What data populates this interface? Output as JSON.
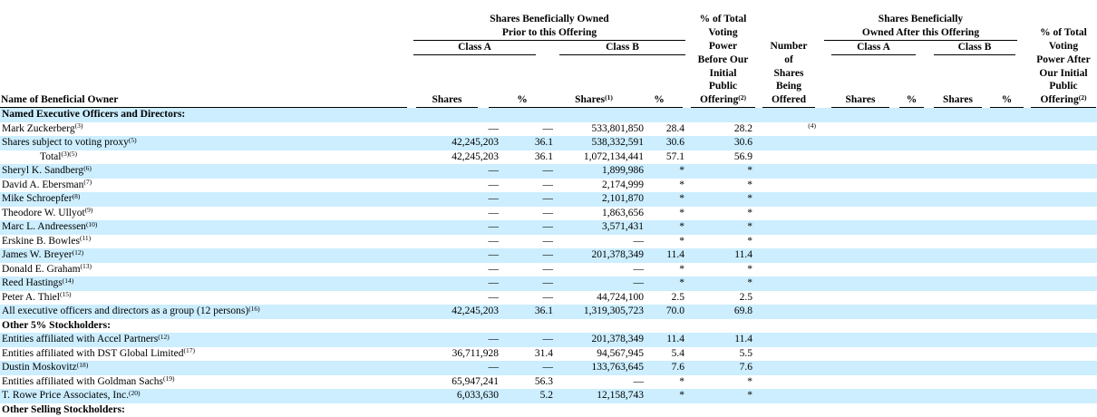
{
  "colors": {
    "stripe": "#cceeff",
    "text": "#000000",
    "background": "#ffffff",
    "rule": "#000000"
  },
  "table": {
    "name_col_header": "Name of Beneficial Owner",
    "groups": {
      "prior": {
        "title": "Shares Beneficially Owned\nPrior to this Offering",
        "class_a": "Class A",
        "class_b": "Class B"
      },
      "after": {
        "title": "Shares Beneficially\nOwned After this Offering",
        "class_a": "Class A",
        "class_b": "Class B"
      }
    },
    "voting_before": {
      "text": "% of Total\nVoting\nPower\nBefore Our\nInitial\nPublic\nOffering",
      "fn": "(2)"
    },
    "offered_header": {
      "text": "Number\nof\nShares\nBeing\nOffered"
    },
    "voting_after": {
      "text": "% of Total\nVoting\nPower After\nOur Initial\nPublic\nOffering",
      "fn": "(2)"
    },
    "col_labels": {
      "prior_a_shares": "Shares",
      "prior_a_pct": "%",
      "prior_b_shares": "Shares",
      "prior_b_shares_fn": "(1)",
      "prior_b_pct": "%",
      "after_a_shares": "Shares",
      "after_a_pct": "%",
      "after_b_shares": "Shares",
      "after_b_pct": "%"
    },
    "rows": [
      {
        "type": "section",
        "name": "Named Executive Officers and Directors:"
      },
      {
        "type": "data",
        "name": "Mark Zuckerberg",
        "fn": "(3)",
        "indent": false,
        "cells": {
          "a_sh": "—",
          "a_pct": "—",
          "b_sh": "533,801,850",
          "b_pct": "28.4",
          "vb": "28.2",
          "offered": "",
          "offered_fn": "(4)",
          "aa_sh": "",
          "aa_pct": "",
          "ab_sh": "",
          "ab_pct": "",
          "va": ""
        }
      },
      {
        "type": "data",
        "name": "Shares subject to voting proxy",
        "fn": "(5)",
        "indent": false,
        "cells": {
          "a_sh": "42,245,203",
          "a_pct": "36.1",
          "b_sh": "538,332,591",
          "b_pct": "30.6",
          "vb": "30.6",
          "offered": "",
          "offered_fn": "",
          "aa_sh": "",
          "aa_pct": "",
          "ab_sh": "",
          "ab_pct": "",
          "va": ""
        }
      },
      {
        "type": "data",
        "name": "Total",
        "fn": "(3)(5)",
        "indent": true,
        "cells": {
          "a_sh": "42,245,203",
          "a_pct": "36.1",
          "b_sh": "1,072,134,441",
          "b_pct": "57.1",
          "vb": "56.9",
          "offered": "",
          "offered_fn": "",
          "aa_sh": "",
          "aa_pct": "",
          "ab_sh": "",
          "ab_pct": "",
          "va": ""
        }
      },
      {
        "type": "data",
        "name": "Sheryl K. Sandberg",
        "fn": "(6)",
        "indent": false,
        "cells": {
          "a_sh": "—",
          "a_pct": "—",
          "b_sh": "1,899,986",
          "b_pct": "*",
          "vb": "*",
          "offered": "",
          "offered_fn": "",
          "aa_sh": "",
          "aa_pct": "",
          "ab_sh": "",
          "ab_pct": "",
          "va": ""
        }
      },
      {
        "type": "data",
        "name": "David A. Ebersman",
        "fn": "(7)",
        "indent": false,
        "cells": {
          "a_sh": "—",
          "a_pct": "—",
          "b_sh": "2,174,999",
          "b_pct": "*",
          "vb": "*",
          "offered": "",
          "offered_fn": "",
          "aa_sh": "",
          "aa_pct": "",
          "ab_sh": "",
          "ab_pct": "",
          "va": ""
        }
      },
      {
        "type": "data",
        "name": "Mike Schroepfer",
        "fn": "(8)",
        "indent": false,
        "cells": {
          "a_sh": "—",
          "a_pct": "—",
          "b_sh": "2,101,870",
          "b_pct": "*",
          "vb": "*",
          "offered": "",
          "offered_fn": "",
          "aa_sh": "",
          "aa_pct": "",
          "ab_sh": "",
          "ab_pct": "",
          "va": ""
        }
      },
      {
        "type": "data",
        "name": "Theodore W. Ullyot",
        "fn": "(9)",
        "indent": false,
        "cells": {
          "a_sh": "—",
          "a_pct": "—",
          "b_sh": "1,863,656",
          "b_pct": "*",
          "vb": "*",
          "offered": "",
          "offered_fn": "",
          "aa_sh": "",
          "aa_pct": "",
          "ab_sh": "",
          "ab_pct": "",
          "va": ""
        }
      },
      {
        "type": "data",
        "name": "Marc L. Andreessen",
        "fn": "(10)",
        "indent": false,
        "cells": {
          "a_sh": "—",
          "a_pct": "—",
          "b_sh": "3,571,431",
          "b_pct": "*",
          "vb": "*",
          "offered": "",
          "offered_fn": "",
          "aa_sh": "",
          "aa_pct": "",
          "ab_sh": "",
          "ab_pct": "",
          "va": ""
        }
      },
      {
        "type": "data",
        "name": "Erskine B. Bowles",
        "fn": "(11)",
        "indent": false,
        "cells": {
          "a_sh": "—",
          "a_pct": "—",
          "b_sh": "—",
          "b_pct": "*",
          "vb": "*",
          "offered": "",
          "offered_fn": "",
          "aa_sh": "",
          "aa_pct": "",
          "ab_sh": "",
          "ab_pct": "",
          "va": ""
        }
      },
      {
        "type": "data",
        "name": "James W. Breyer",
        "fn": "(12)",
        "indent": false,
        "cells": {
          "a_sh": "—",
          "a_pct": "—",
          "b_sh": "201,378,349",
          "b_pct": "11.4",
          "vb": "11.4",
          "offered": "",
          "offered_fn": "",
          "aa_sh": "",
          "aa_pct": "",
          "ab_sh": "",
          "ab_pct": "",
          "va": ""
        }
      },
      {
        "type": "data",
        "name": "Donald E. Graham",
        "fn": "(13)",
        "indent": false,
        "cells": {
          "a_sh": "—",
          "a_pct": "—",
          "b_sh": "—",
          "b_pct": "*",
          "vb": "*",
          "offered": "",
          "offered_fn": "",
          "aa_sh": "",
          "aa_pct": "",
          "ab_sh": "",
          "ab_pct": "",
          "va": ""
        }
      },
      {
        "type": "data",
        "name": "Reed Hastings",
        "fn": "(14)",
        "indent": false,
        "cells": {
          "a_sh": "—",
          "a_pct": "—",
          "b_sh": "—",
          "b_pct": "*",
          "vb": "*",
          "offered": "",
          "offered_fn": "",
          "aa_sh": "",
          "aa_pct": "",
          "ab_sh": "",
          "ab_pct": "",
          "va": ""
        }
      },
      {
        "type": "data",
        "name": "Peter A. Thiel",
        "fn": "(15)",
        "indent": false,
        "cells": {
          "a_sh": "—",
          "a_pct": "—",
          "b_sh": "44,724,100",
          "b_pct": "2.5",
          "vb": "2.5",
          "offered": "",
          "offered_fn": "",
          "aa_sh": "",
          "aa_pct": "",
          "ab_sh": "",
          "ab_pct": "",
          "va": ""
        }
      },
      {
        "type": "data",
        "name": "All executive officers and directors as a group (12 persons)",
        "fn": "(16)",
        "indent": false,
        "cells": {
          "a_sh": "42,245,203",
          "a_pct": "36.1",
          "b_sh": "1,319,305,723",
          "b_pct": "70.0",
          "vb": "69.8",
          "offered": "",
          "offered_fn": "",
          "aa_sh": "",
          "aa_pct": "",
          "ab_sh": "",
          "ab_pct": "",
          "va": ""
        }
      },
      {
        "type": "section",
        "name": "Other 5% Stockholders:"
      },
      {
        "type": "data",
        "name": "Entities affiliated with Accel Partners",
        "fn": "(12)",
        "indent": false,
        "cells": {
          "a_sh": "—",
          "a_pct": "—",
          "b_sh": "201,378,349",
          "b_pct": "11.4",
          "vb": "11.4",
          "offered": "",
          "offered_fn": "",
          "aa_sh": "",
          "aa_pct": "",
          "ab_sh": "",
          "ab_pct": "",
          "va": ""
        }
      },
      {
        "type": "data",
        "name": "Entities affiliated with DST Global Limited",
        "fn": "(17)",
        "indent": false,
        "cells": {
          "a_sh": "36,711,928",
          "a_pct": "31.4",
          "b_sh": "94,567,945",
          "b_pct": "5.4",
          "vb": "5.5",
          "offered": "",
          "offered_fn": "",
          "aa_sh": "",
          "aa_pct": "",
          "ab_sh": "",
          "ab_pct": "",
          "va": ""
        }
      },
      {
        "type": "data",
        "name": "Dustin Moskovitz",
        "fn": "(18)",
        "indent": false,
        "cells": {
          "a_sh": "—",
          "a_pct": "—",
          "b_sh": "133,763,645",
          "b_pct": "7.6",
          "vb": "7.6",
          "offered": "",
          "offered_fn": "",
          "aa_sh": "",
          "aa_pct": "",
          "ab_sh": "",
          "ab_pct": "",
          "va": ""
        }
      },
      {
        "type": "data",
        "name": "Entities affiliated with Goldman Sachs",
        "fn": "(19)",
        "indent": false,
        "cells": {
          "a_sh": "65,947,241",
          "a_pct": "56.3",
          "b_sh": "—",
          "b_pct": "*",
          "vb": "*",
          "offered": "",
          "offered_fn": "",
          "aa_sh": "",
          "aa_pct": "",
          "ab_sh": "",
          "ab_pct": "",
          "va": ""
        }
      },
      {
        "type": "data",
        "name": "T. Rowe Price Associates, Inc.",
        "fn": "(20)",
        "indent": false,
        "cells": {
          "a_sh": "6,033,630",
          "a_pct": "5.2",
          "b_sh": "12,158,743",
          "b_pct": "*",
          "vb": "*",
          "offered": "",
          "offered_fn": "",
          "aa_sh": "",
          "aa_pct": "",
          "ab_sh": "",
          "ab_pct": "",
          "va": ""
        }
      },
      {
        "type": "section",
        "name": "Other Selling Stockholders:"
      }
    ]
  }
}
